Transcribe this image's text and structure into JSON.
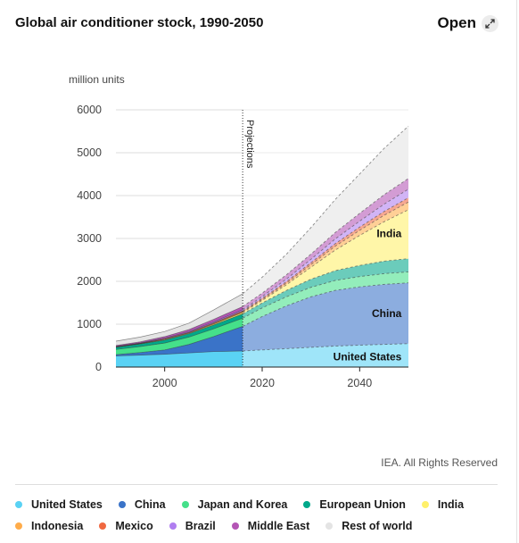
{
  "header": {
    "title": "Global air conditioner stock, 1990-2050",
    "open_label": "Open"
  },
  "credits": "IEA. All Rights Reserved",
  "chart_data": {
    "type": "area",
    "stacked": true,
    "ylabel": "million units",
    "ylim": [
      0,
      6000
    ],
    "yticks": [
      0,
      1000,
      2000,
      3000,
      4000,
      5000,
      6000
    ],
    "xlim": [
      1990,
      2050
    ],
    "xticks": [
      2000,
      2020,
      2040
    ],
    "grid": true,
    "projection_start": 2016,
    "projection_label": "Projections",
    "x": [
      1990,
      1995,
      2000,
      2005,
      2010,
      2016,
      2020,
      2025,
      2030,
      2035,
      2040,
      2045,
      2050
    ],
    "series": [
      {
        "name": "United States",
        "color": "#5ad2f4",
        "values": [
          260,
          280,
          300,
          330,
          360,
          375,
          400,
          430,
          460,
          490,
          510,
          530,
          545
        ]
      },
      {
        "name": "China",
        "color": "#3a73c8",
        "values": [
          30,
          60,
          100,
          200,
          350,
          575,
          780,
          1000,
          1180,
          1300,
          1360,
          1400,
          1420
        ]
      },
      {
        "name": "Japan and Korea",
        "color": "#45e08a",
        "values": [
          120,
          140,
          160,
          170,
          180,
          190,
          200,
          210,
          220,
          230,
          240,
          250,
          255
        ]
      },
      {
        "name": "European Union",
        "color": "#00a88a",
        "values": [
          50,
          60,
          70,
          80,
          90,
          100,
          115,
          150,
          190,
          230,
          260,
          290,
          310
        ]
      },
      {
        "name": "India",
        "color": "#fff06a",
        "values": [
          5,
          5,
          10,
          10,
          20,
          30,
          60,
          130,
          280,
          480,
          700,
          920,
          1140
        ]
      },
      {
        "name": "Indonesia",
        "color": "#ffac4a",
        "values": [
          5,
          5,
          10,
          10,
          15,
          20,
          25,
          40,
          60,
          90,
          120,
          150,
          180
        ]
      },
      {
        "name": "Mexico",
        "color": "#f06840",
        "values": [
          5,
          5,
          10,
          10,
          15,
          20,
          25,
          35,
          45,
          60,
          75,
          90,
          100
        ]
      },
      {
        "name": "Brazil",
        "color": "#b07ef0",
        "values": [
          10,
          10,
          15,
          20,
          25,
          30,
          40,
          60,
          80,
          110,
          140,
          170,
          200
        ]
      },
      {
        "name": "Middle East",
        "color": "#b455b5",
        "values": [
          20,
          25,
          35,
          45,
          55,
          70,
          80,
          100,
          120,
          150,
          180,
          220,
          250
        ]
      },
      {
        "name": "Rest of world",
        "color": "#e4e4e4",
        "values": [
          100,
          110,
          120,
          150,
          220,
          300,
          370,
          480,
          620,
          770,
          920,
          1080,
          1220
        ]
      }
    ],
    "annotations": [
      "India",
      "China",
      "United States"
    ]
  }
}
